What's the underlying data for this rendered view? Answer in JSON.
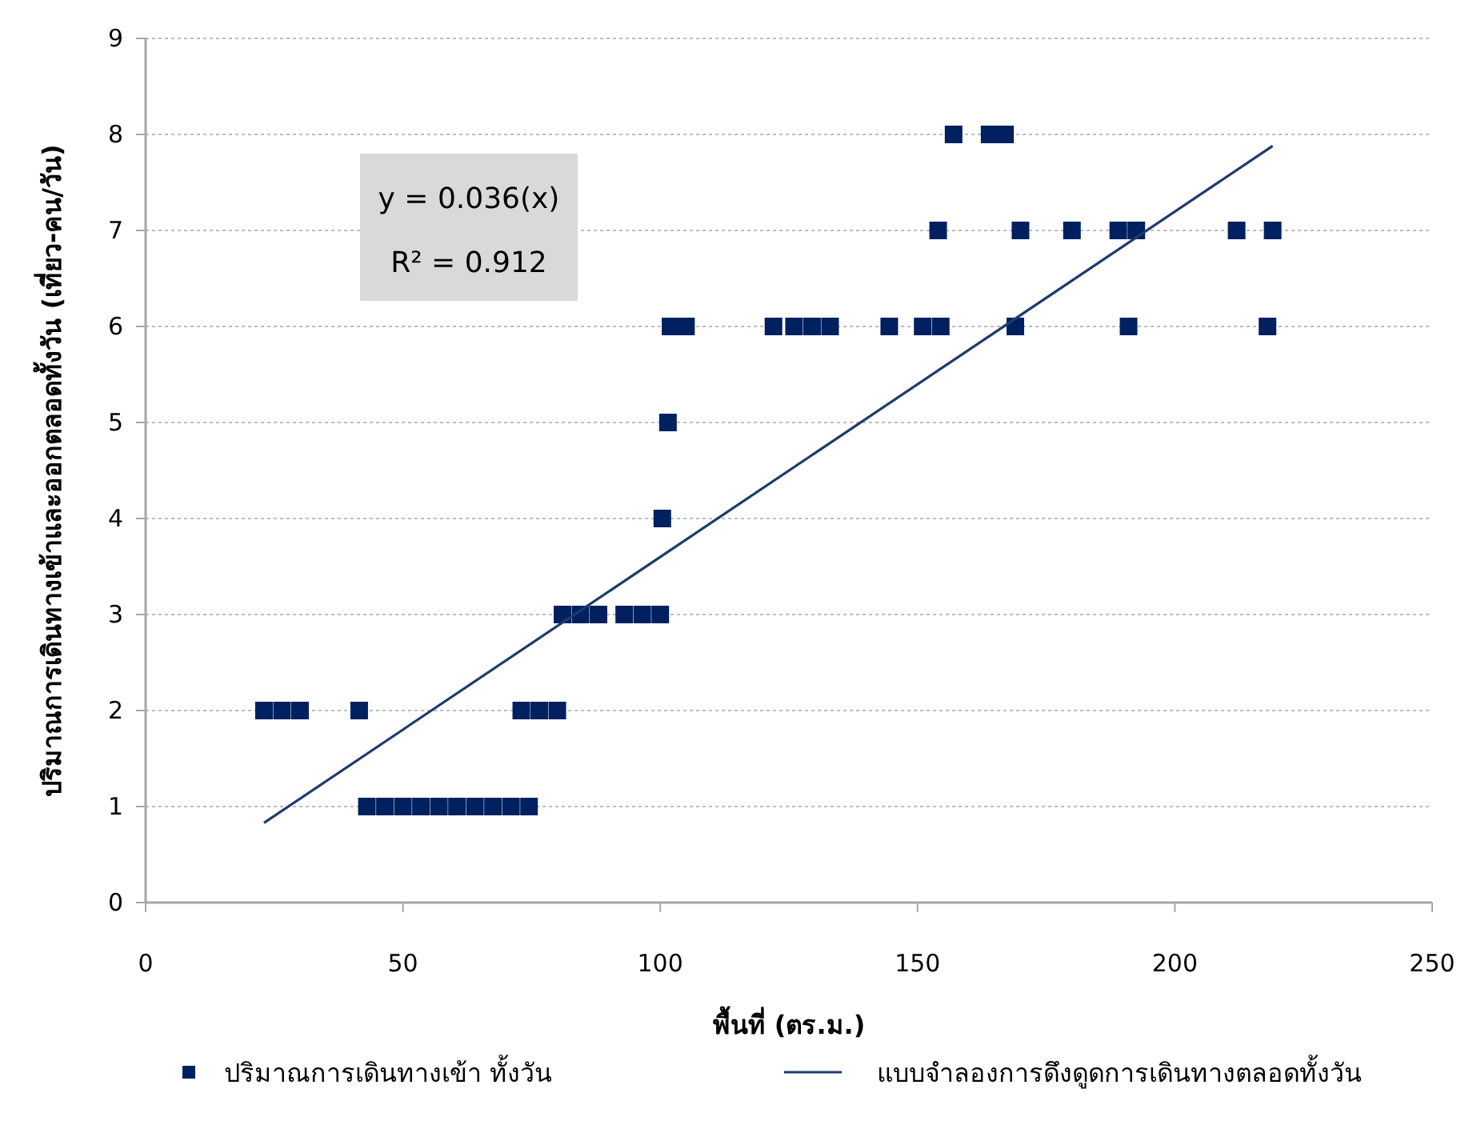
{
  "chart_data": {
    "type": "scatter",
    "xlabel": "พื้นที่ (ตร.ม.)",
    "ylabel": "ปริมาณการเดินทางเข้าและออกตลอดทั้งวัน (เที่ยว-คน/วัน)",
    "xlim": [
      0,
      250
    ],
    "xticks": [
      0,
      50,
      100,
      150,
      200,
      250
    ],
    "ylim": [
      0,
      9
    ],
    "yticks": [
      0,
      1,
      2,
      3,
      4,
      5,
      6,
      7,
      8,
      9
    ],
    "grid": "y",
    "legend": "bottom",
    "marker": "square",
    "annotations": [
      "y = 0.036(x)",
      "R² = 0.912"
    ],
    "series": [
      {
        "name": "ปริมาณการเดินทางเข้า ทั้งวัน",
        "color": "#002060",
        "x": [
          23,
          26.5,
          30,
          41.5,
          73,
          76.5,
          80,
          43,
          46.5,
          50,
          53.5,
          57,
          60.5,
          64,
          67.5,
          71,
          74.5,
          81,
          84.5,
          88,
          93,
          96.5,
          100,
          100.4,
          101.5,
          102,
          105,
          122,
          126,
          129.5,
          133,
          144.5,
          151,
          154.5,
          169,
          191,
          218,
          154,
          170,
          180,
          189,
          192.5,
          212,
          219,
          157,
          164,
          167
        ],
        "values": [
          2,
          2,
          2,
          2,
          2,
          2,
          2,
          1,
          1,
          1,
          1,
          1,
          1,
          1,
          1,
          1,
          1,
          3,
          3,
          3,
          3,
          3,
          3,
          4,
          5,
          6,
          6,
          6,
          6,
          6,
          6,
          6,
          6,
          6,
          6,
          6,
          6,
          7,
          7,
          7,
          7,
          7,
          7,
          7,
          8,
          8,
          8
        ]
      },
      {
        "name": "แบบจำลองการดึงดูดการเดินทางตลอดทั้งวัน",
        "type": "line",
        "color": "#1f3a6e",
        "marker": "none",
        "line_style": "solid",
        "x": [
          23,
          219
        ],
        "values": [
          0.83,
          7.88
        ]
      }
    ]
  }
}
